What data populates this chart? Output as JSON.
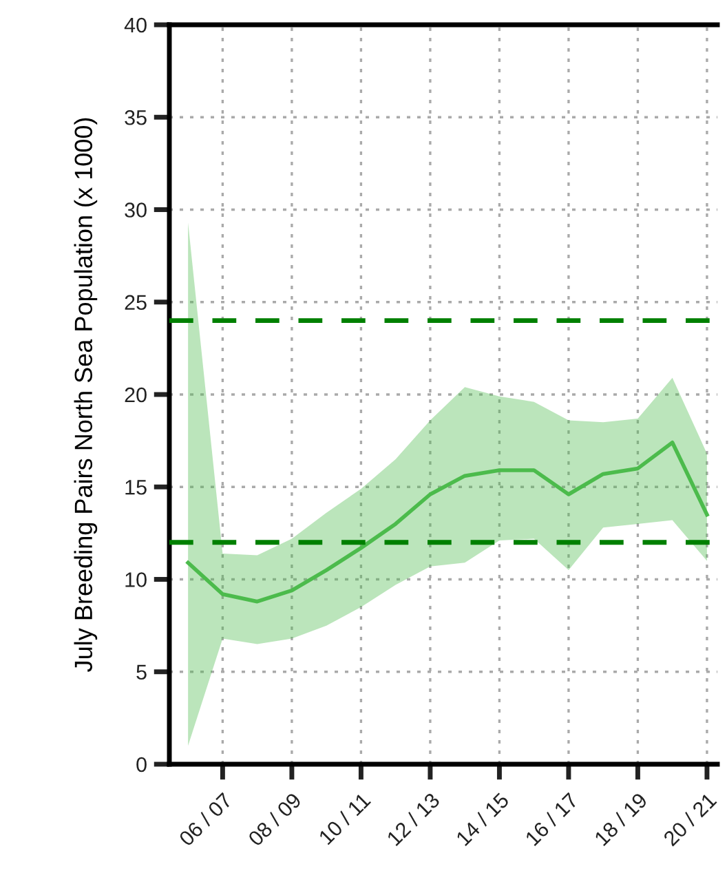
{
  "chart_data": {
    "type": "line",
    "ylabel": "July Breeding Pairs North Sea Population (x 1000)",
    "categories": [
      null,
      "06 / 07",
      null,
      "08 / 09",
      null,
      "10 / 11",
      null,
      "12 / 13",
      null,
      "14 / 15",
      null,
      "16 / 17",
      null,
      "18 / 19",
      null,
      "20 / 21"
    ],
    "series": [
      {
        "color": "#4cbb4c",
        "values": [
          10.9,
          9.2,
          8.8,
          9.4,
          10.5,
          11.7,
          13.0,
          14.6,
          15.6,
          15.9,
          15.9,
          14.6,
          15.7,
          16.0,
          17.4,
          13.5
        ],
        "lower": [
          1.0,
          6.8,
          6.5,
          6.8,
          7.5,
          8.5,
          9.7,
          10.7,
          10.9,
          12.1,
          12.2,
          10.5,
          12.8,
          13.0,
          13.2,
          11.0
        ],
        "upper": [
          29.3,
          11.4,
          11.3,
          12.2,
          13.6,
          14.9,
          16.5,
          18.6,
          20.4,
          19.9,
          19.6,
          18.6,
          18.5,
          18.7,
          20.9,
          16.8
        ]
      }
    ],
    "ylim": [
      0,
      40
    ],
    "yticks": [
      0,
      5,
      10,
      15,
      20,
      25,
      30,
      35,
      40
    ],
    "ref_lines": [
      {
        "axis": "y",
        "value": 24,
        "color": "#008000",
        "line_style": "dashed"
      },
      {
        "axis": "y",
        "value": 12,
        "color": "#008000",
        "line_style": "dashed"
      }
    ],
    "grid": true,
    "line_style": "solid",
    "marker": "none"
  }
}
